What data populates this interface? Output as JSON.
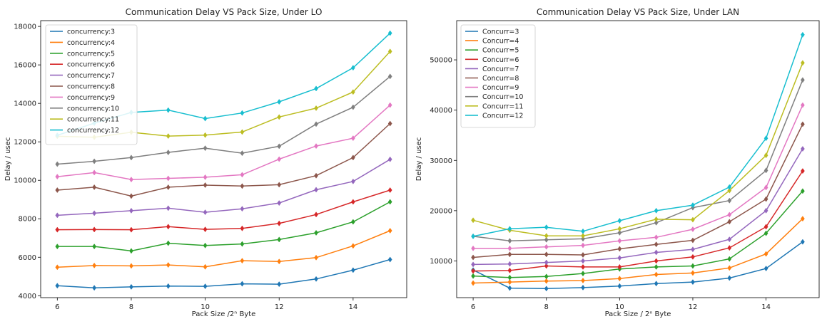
{
  "chart_data": [
    {
      "type": "line",
      "title": "Communication Delay VS Pack Size, Under LO",
      "xlabel": "Pack Size /2ⁿ Byte",
      "ylabel": "Delay / usec",
      "xlim": [
        5.55,
        15.45
      ],
      "ylim": [
        3900,
        18300
      ],
      "xticks": [
        6,
        8,
        10,
        12,
        14
      ],
      "yticks": [
        4000,
        6000,
        8000,
        10000,
        12000,
        14000,
        16000,
        18000
      ],
      "grid": false,
      "legend_position": "top-left",
      "marker": "diamond",
      "x": [
        6,
        7,
        8,
        9,
        10,
        11,
        12,
        13,
        14,
        15
      ],
      "series": [
        {
          "name": "concurrency:3",
          "color": "#1f77b4",
          "values": [
            4520,
            4410,
            4460,
            4500,
            4490,
            4620,
            4600,
            4870,
            5330,
            5880
          ]
        },
        {
          "name": "concurrency:4",
          "color": "#ff7f0e",
          "values": [
            5480,
            5570,
            5550,
            5600,
            5500,
            5820,
            5780,
            5980,
            6590,
            7380
          ]
        },
        {
          "name": "concurrency:5",
          "color": "#2ca02c",
          "values": [
            6560,
            6560,
            6330,
            6730,
            6610,
            6690,
            6920,
            7270,
            7840,
            8880
          ]
        },
        {
          "name": "concurrency:6",
          "color": "#d62728",
          "values": [
            7430,
            7440,
            7430,
            7590,
            7450,
            7500,
            7760,
            8220,
            8880,
            9490
          ]
        },
        {
          "name": "concurrency:7",
          "color": "#9467bd",
          "values": [
            8180,
            8290,
            8420,
            8550,
            8340,
            8520,
            8820,
            9510,
            9940,
            11090
          ]
        },
        {
          "name": "concurrency:8",
          "color": "#8c564b",
          "values": [
            9490,
            9640,
            9180,
            9640,
            9750,
            9700,
            9770,
            10240,
            11180,
            12950
          ]
        },
        {
          "name": "concurrency:9",
          "color": "#e377c2",
          "values": [
            10190,
            10400,
            10040,
            10100,
            10160,
            10290,
            11100,
            11780,
            12190,
            13910
          ]
        },
        {
          "name": "concurrency:10",
          "color": "#7f7f7f",
          "values": [
            10840,
            10990,
            11180,
            11450,
            11670,
            11410,
            11770,
            12920,
            13800,
            15400
          ]
        },
        {
          "name": "concurrency:11",
          "color": "#bcbd22",
          "values": [
            12290,
            12240,
            12500,
            12300,
            12350,
            12510,
            13290,
            13750,
            14590,
            16700
          ]
        },
        {
          "name": "concurrency:12",
          "color": "#17becf",
          "values": [
            12340,
            12970,
            13530,
            13650,
            13210,
            13500,
            14080,
            14770,
            15850,
            17650
          ]
        }
      ]
    },
    {
      "type": "line",
      "title": "Communication Delay VS Pack Size, Under LAN",
      "xlabel": "Pack Size / 2ⁿ Byte",
      "ylabel": "Delay / usec",
      "xlim": [
        5.55,
        15.45
      ],
      "ylim": [
        2700,
        57800
      ],
      "xticks": [
        6,
        8,
        10,
        12,
        14
      ],
      "yticks": [
        10000,
        20000,
        30000,
        40000,
        50000
      ],
      "grid": false,
      "legend_position": "top-left",
      "marker": "diamond",
      "x": [
        6,
        7,
        8,
        9,
        10,
        11,
        12,
        13,
        14,
        15
      ],
      "series": [
        {
          "name": "Concurr=3",
          "color": "#1f77b4",
          "values": [
            8200,
            4600,
            4500,
            4700,
            5000,
            5500,
            5800,
            6600,
            8500,
            13800
          ]
        },
        {
          "name": "Concurr=4",
          "color": "#ff7f0e",
          "values": [
            5600,
            5800,
            6000,
            6100,
            6500,
            7300,
            7600,
            8600,
            11400,
            18400
          ]
        },
        {
          "name": "Concurr=5",
          "color": "#2ca02c",
          "values": [
            7000,
            6700,
            6900,
            7500,
            8400,
            8800,
            9000,
            10400,
            15500,
            23900
          ]
        },
        {
          "name": "Concurr=6",
          "color": "#d62728",
          "values": [
            8000,
            8100,
            9000,
            8800,
            8800,
            10000,
            10800,
            12600,
            16800,
            27900
          ]
        },
        {
          "name": "Concurr=7",
          "color": "#9467bd",
          "values": [
            9300,
            9400,
            9700,
            10000,
            10600,
            11700,
            12300,
            14300,
            20000,
            32300
          ]
        },
        {
          "name": "Concurr=8",
          "color": "#8c564b",
          "values": [
            10700,
            11300,
            11300,
            11200,
            12400,
            13300,
            14100,
            17800,
            22300,
            37200
          ]
        },
        {
          "name": "Concurr=9",
          "color": "#e377c2",
          "values": [
            12500,
            12500,
            12800,
            13100,
            14000,
            14700,
            16300,
            19200,
            24600,
            41000
          ]
        },
        {
          "name": "Concurr=10",
          "color": "#7f7f7f",
          "values": [
            14900,
            14000,
            14200,
            14400,
            15600,
            17600,
            20600,
            22000,
            28000,
            46000
          ]
        },
        {
          "name": "Concurr=11",
          "color": "#bcbd22",
          "values": [
            18100,
            16100,
            15000,
            15000,
            16400,
            18300,
            18200,
            24000,
            31000,
            49400
          ]
        },
        {
          "name": "Concurr=12",
          "color": "#17becf",
          "values": [
            14900,
            16400,
            16700,
            15900,
            18000,
            20000,
            21100,
            24700,
            34400,
            55000
          ]
        }
      ]
    }
  ]
}
